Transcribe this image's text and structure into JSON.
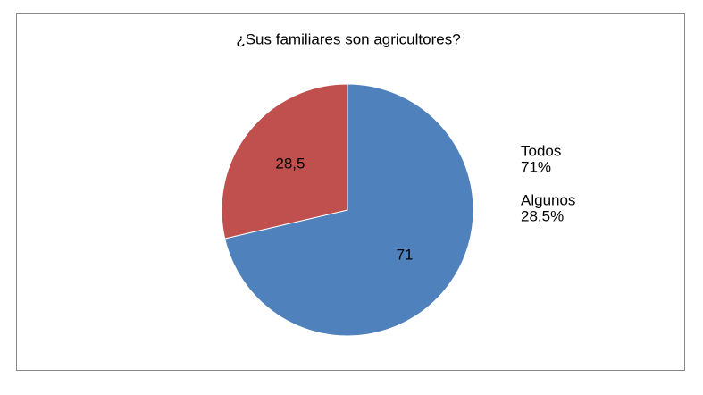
{
  "chart_data": {
    "type": "pie",
    "title": "¿Sus familiares son agricultores?",
    "categories": [
      "Todos",
      "Algunos"
    ],
    "values": [
      71,
      28.5
    ],
    "value_labels": [
      "71",
      "28,5"
    ],
    "percent_labels": [
      "71%",
      "28,5%"
    ],
    "colors": [
      "#4f81bd",
      "#c0504d"
    ]
  }
}
